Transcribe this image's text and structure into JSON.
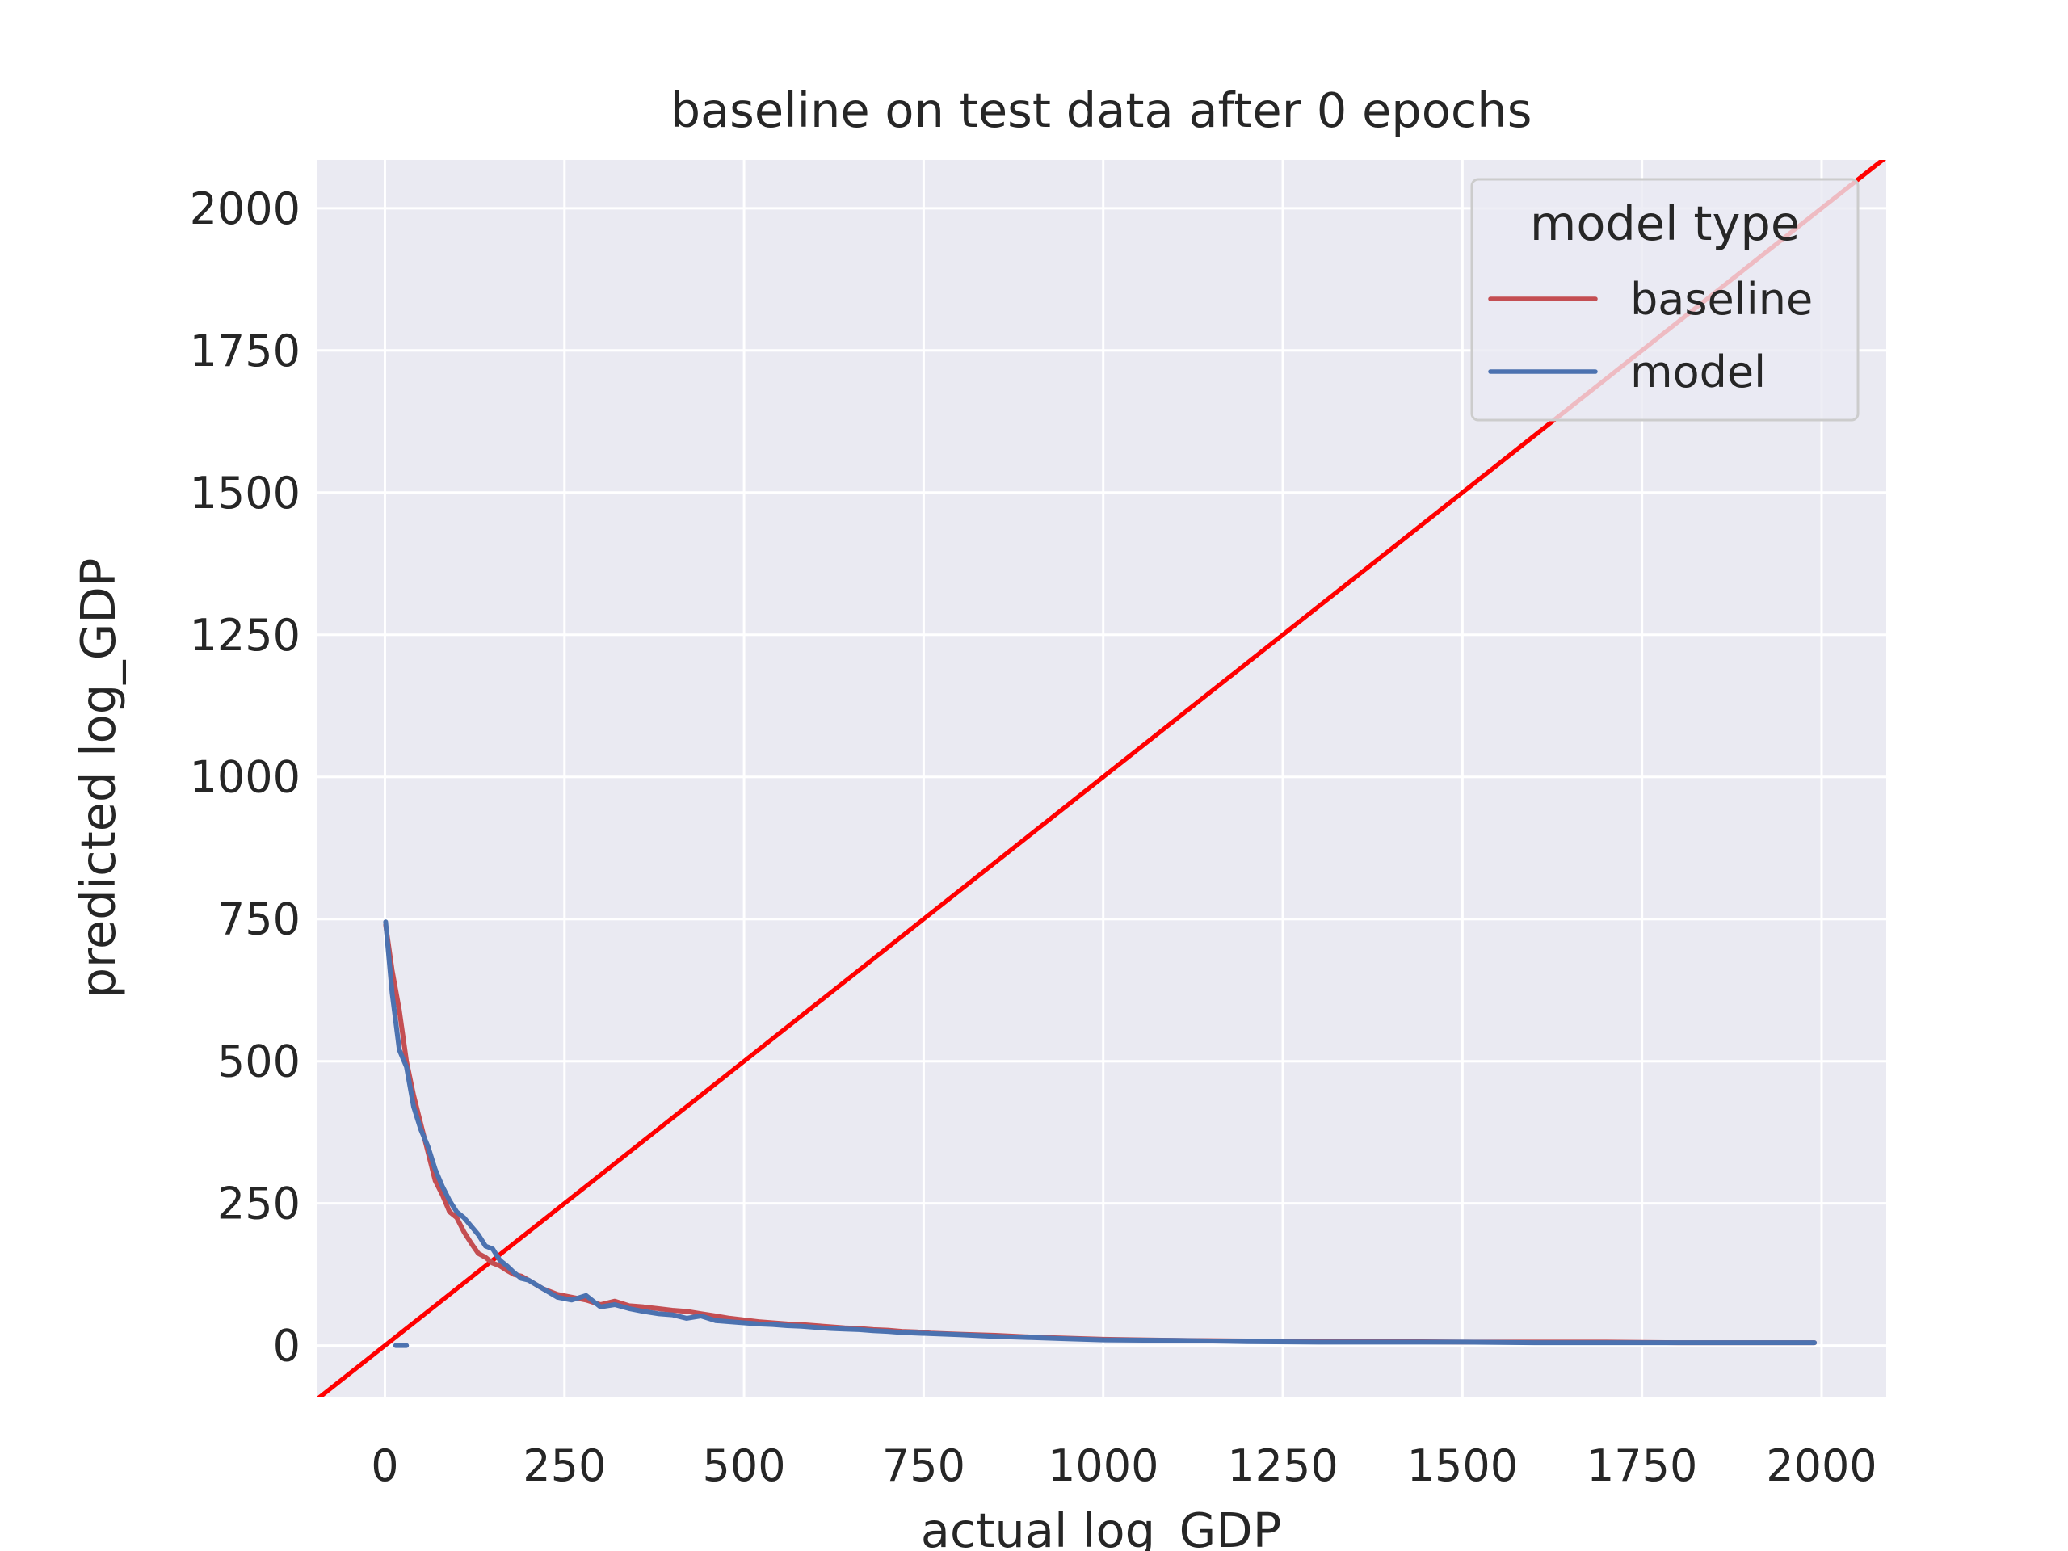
{
  "chart_data": {
    "type": "line",
    "title": "baseline on test data after 0 epochs",
    "xlabel": "actual log_GDP",
    "ylabel": "predicted log_GDP",
    "xlim": [
      -95,
      2090
    ],
    "ylim": [
      -90,
      2085
    ],
    "xticks": [
      0,
      250,
      500,
      750,
      1000,
      1250,
      1500,
      1750,
      2000
    ],
    "yticks": [
      0,
      250,
      500,
      750,
      1000,
      1250,
      1500,
      1750,
      2000
    ],
    "grid": true,
    "legend": {
      "title": "model type",
      "placement": "top-right",
      "entries": [
        "baseline",
        "model"
      ]
    },
    "reference_line": {
      "description": "y = x",
      "color": "#ff0000",
      "points": [
        [
          -95,
          -95
        ],
        [
          2090,
          2090
        ]
      ]
    },
    "series": [
      {
        "name": "baseline",
        "color": "#c44e52",
        "x": [
          1,
          10,
          20,
          30,
          40,
          50,
          60,
          70,
          80,
          90,
          100,
          110,
          120,
          130,
          140,
          150,
          160,
          170,
          180,
          190,
          200,
          220,
          240,
          260,
          280,
          300,
          320,
          340,
          360,
          380,
          400,
          420,
          440,
          460,
          480,
          500,
          520,
          540,
          560,
          580,
          600,
          620,
          640,
          660,
          680,
          700,
          720,
          740,
          760,
          800,
          850,
          900,
          950,
          1000,
          1100,
          1200,
          1300,
          1400,
          1500,
          1600,
          1700,
          1800,
          1900,
          1990
        ],
        "values": [
          740,
          660,
          590,
          500,
          440,
          390,
          340,
          290,
          265,
          235,
          225,
          200,
          180,
          162,
          155,
          145,
          140,
          132,
          125,
          122,
          115,
          100,
          90,
          85,
          80,
          72,
          78,
          70,
          68,
          65,
          62,
          60,
          56,
          52,
          48,
          45,
          42,
          40,
          38,
          37,
          35,
          33,
          31,
          30,
          28,
          27,
          25,
          24,
          22,
          20,
          18,
          15,
          13,
          11,
          9,
          8,
          7,
          7,
          6,
          6,
          6,
          5,
          5,
          5
        ]
      },
      {
        "name": "model",
        "color": "#4c72b0",
        "x": [
          1,
          10,
          20,
          30,
          40,
          50,
          60,
          70,
          80,
          90,
          100,
          110,
          120,
          130,
          140,
          150,
          160,
          170,
          180,
          190,
          200,
          220,
          240,
          260,
          280,
          300,
          320,
          340,
          360,
          380,
          400,
          420,
          440,
          460,
          480,
          500,
          520,
          540,
          560,
          580,
          600,
          620,
          640,
          660,
          680,
          700,
          720,
          740,
          760,
          800,
          850,
          900,
          950,
          1000,
          1100,
          1200,
          1300,
          1400,
          1500,
          1600,
          1700,
          1800,
          1900,
          1990
        ],
        "values": [
          745,
          620,
          520,
          490,
          420,
          380,
          350,
          310,
          280,
          255,
          235,
          225,
          210,
          195,
          175,
          170,
          150,
          140,
          128,
          118,
          115,
          100,
          85,
          80,
          88,
          68,
          72,
          65,
          60,
          56,
          54,
          48,
          52,
          44,
          42,
          40,
          38,
          37,
          35,
          34,
          32,
          30,
          29,
          28,
          26,
          25,
          23,
          22,
          21,
          19,
          16,
          14,
          12,
          10,
          9,
          7,
          6,
          6,
          6,
          5,
          5,
          5,
          5,
          5
        ]
      },
      {
        "name": "",
        "color": "#4c72b0",
        "x": [
          15,
          20,
          25,
          30
        ],
        "values": [
          0,
          0,
          0,
          0
        ]
      }
    ]
  }
}
